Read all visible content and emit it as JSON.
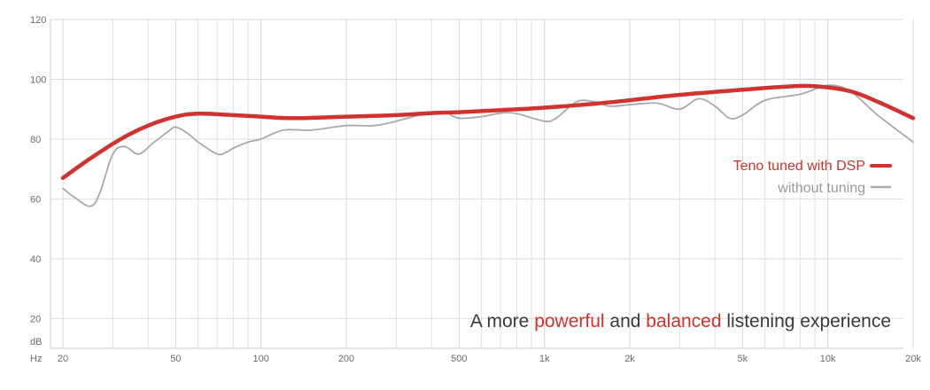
{
  "chart_data": {
    "type": "line",
    "title": "",
    "x_scale": "log",
    "xlabel": "Hz",
    "ylabel": "dB",
    "xlim": [
      20,
      20000
    ],
    "ylim": [
      10,
      120
    ],
    "x_ticks": [
      20,
      50,
      100,
      200,
      500,
      1000,
      2000,
      5000,
      10000,
      20000
    ],
    "x_tick_labels": [
      "20",
      "50",
      "100",
      "200",
      "500",
      "1k",
      "2k",
      "5k",
      "10k",
      "20k"
    ],
    "y_ticks": [
      20,
      40,
      60,
      80,
      100,
      120
    ],
    "y_tick_labels": [
      "20",
      "40",
      "60",
      "80",
      "100",
      "120"
    ],
    "x_minor_lines": [
      30,
      40,
      60,
      70,
      80,
      90,
      300,
      400,
      600,
      700,
      800,
      900,
      3000,
      4000,
      6000,
      7000,
      8000,
      9000
    ],
    "grid": true,
    "legend_position": "right",
    "series": [
      {
        "name": "Teno tuned with DSP",
        "color": "#d0332f",
        "x": [
          20,
          25,
          32,
          40,
          50,
          60,
          80,
          100,
          130,
          200,
          300,
          400,
          500,
          700,
          1000,
          1500,
          2000,
          3000,
          5000,
          7000,
          9000,
          12000,
          15000,
          20000
        ],
        "y": [
          67,
          73.5,
          80,
          84.5,
          87.5,
          88.5,
          88,
          87.5,
          87,
          87.5,
          88,
          88.7,
          89,
          89.7,
          90.5,
          91.8,
          93,
          94.8,
          96.5,
          97.5,
          97.7,
          96,
          92.5,
          87
        ]
      },
      {
        "name": "without tuning",
        "color": "#a9a9a9",
        "x": [
          20,
          22,
          25,
          27,
          30,
          33,
          37,
          42,
          47,
          50,
          55,
          60,
          70,
          75,
          80,
          90,
          100,
          120,
          150,
          200,
          250,
          300,
          400,
          450,
          500,
          600,
          700,
          800,
          1000,
          1100,
          1300,
          1500,
          1700,
          2000,
          2500,
          3000,
          3500,
          4000,
          4500,
          5000,
          6000,
          8000,
          10000,
          12000,
          15000,
          20000
        ],
        "y": [
          63.5,
          60.5,
          57.5,
          62,
          75,
          77.5,
          75,
          79,
          82.5,
          84,
          82,
          79,
          75,
          75.5,
          77,
          79,
          80,
          83,
          83,
          84.5,
          84.5,
          86,
          89,
          88.8,
          87,
          87.5,
          88.7,
          88.5,
          86,
          87,
          92.5,
          92.5,
          91,
          91.5,
          92,
          90,
          93.5,
          91,
          87,
          88,
          93,
          95,
          98,
          96,
          88,
          79
        ]
      }
    ],
    "tagline": {
      "part1": "A more ",
      "highlight1": "powerful",
      "part2": " and ",
      "highlight2": "balanced",
      "part3": " listening experience"
    },
    "colors": {
      "accent": "#d0332f",
      "reference": "#a9a9a9",
      "grid": "#dfe4e3",
      "axis": "#c9cccc"
    }
  }
}
